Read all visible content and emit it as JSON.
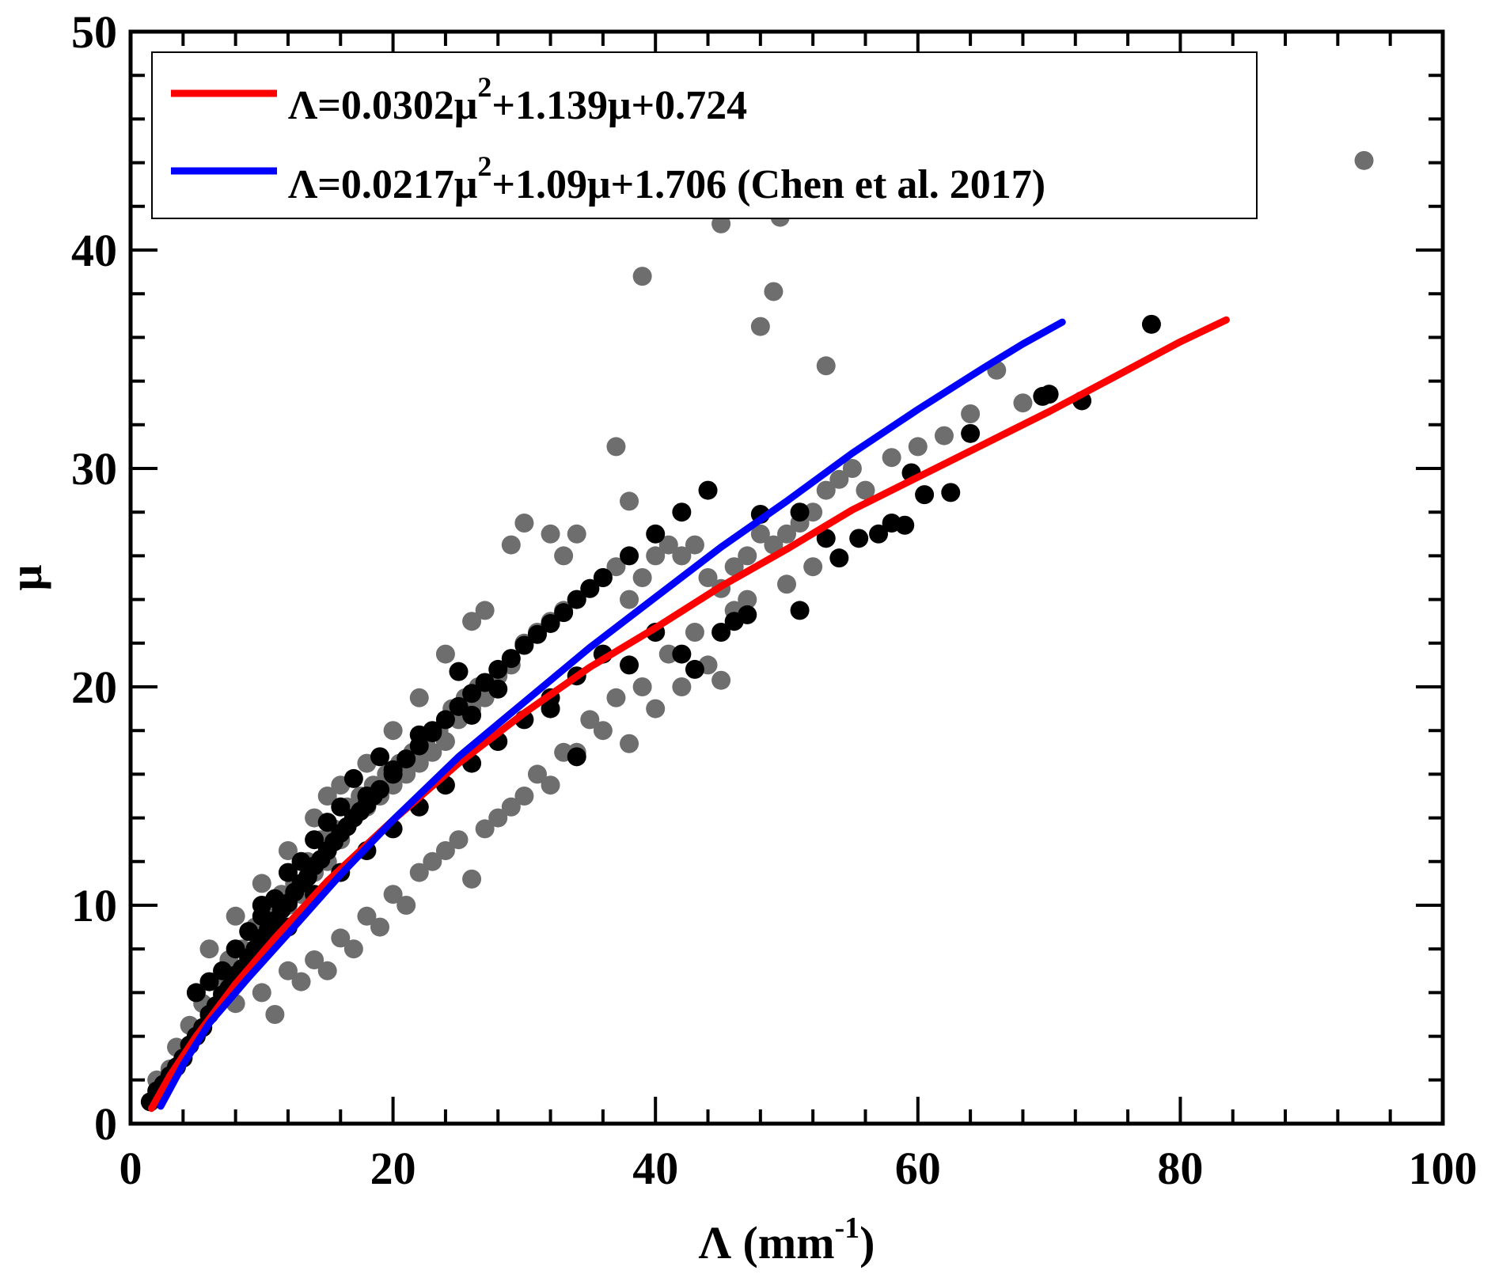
{
  "chart_data": {
    "type": "scatter",
    "xlabel": {
      "base": "Λ (mm",
      "sup": "-1",
      "tail": ")"
    },
    "ylabel": "μ",
    "xlim": [
      0,
      100
    ],
    "ylim": [
      0,
      50
    ],
    "x_ticks": [
      0,
      20,
      40,
      60,
      80,
      100
    ],
    "y_ticks": [
      0,
      10,
      20,
      30,
      40,
      50
    ],
    "x_tick_labels": [
      "0",
      "20",
      "40",
      "60",
      "80",
      "100"
    ],
    "y_tick_labels": [
      "0",
      "10",
      "20",
      "30",
      "40",
      "50"
    ],
    "minor_x_step": 4,
    "minor_y_step": 2,
    "legend": {
      "position": "top-left",
      "entries": [
        {
          "color": "#ff0000",
          "lead": "Λ=0.0302μ",
          "sup": "2",
          "tail": "+1.139μ+0.724"
        },
        {
          "color": "#0000ff",
          "lead": "Λ=0.0217μ",
          "sup": "2",
          "tail": "+1.09μ+1.706 (Chen et al. 2017)"
        }
      ]
    },
    "series": [
      {
        "name": "gray-points",
        "color": "#6e6e6e",
        "points": [
          [
            2,
            2
          ],
          [
            3,
            2.5
          ],
          [
            3.5,
            3.5
          ],
          [
            4,
            3
          ],
          [
            4.5,
            4.5
          ],
          [
            5,
            4
          ],
          [
            5.5,
            5.5
          ],
          [
            6,
            5
          ],
          [
            6.5,
            6.5
          ],
          [
            7,
            6
          ],
          [
            7.5,
            7.5
          ],
          [
            8,
            7
          ],
          [
            8.5,
            8
          ],
          [
            9,
            7.5
          ],
          [
            9.5,
            9
          ],
          [
            10,
            8.5
          ],
          [
            10.5,
            10
          ],
          [
            11,
            9.5
          ],
          [
            11.5,
            10.5
          ],
          [
            12,
            10
          ],
          [
            12.5,
            11
          ],
          [
            13,
            10.5
          ],
          [
            13.5,
            12
          ],
          [
            14,
            11.5
          ],
          [
            14.5,
            13
          ],
          [
            15,
            12
          ],
          [
            15.5,
            13.5
          ],
          [
            16,
            13
          ],
          [
            16.5,
            14.5
          ],
          [
            17,
            14
          ],
          [
            17.5,
            15
          ],
          [
            18,
            14.5
          ],
          [
            18.5,
            15.5
          ],
          [
            19,
            15
          ],
          [
            19.5,
            16
          ],
          [
            20,
            15.5
          ],
          [
            20.5,
            16.5
          ],
          [
            21,
            16
          ],
          [
            21.5,
            17
          ],
          [
            22,
            16.5
          ],
          [
            22.5,
            17.5
          ],
          [
            23,
            17
          ],
          [
            23.5,
            18
          ],
          [
            24,
            17.5
          ],
          [
            24.5,
            19
          ],
          [
            25,
            18.5
          ],
          [
            25.5,
            19.5
          ],
          [
            26,
            19
          ],
          [
            26.5,
            20
          ],
          [
            27,
            19.5
          ],
          [
            28,
            20.5
          ],
          [
            29,
            21
          ],
          [
            30,
            22
          ],
          [
            31,
            22.5
          ],
          [
            32,
            23
          ],
          [
            33,
            23.5
          ],
          [
            34,
            24
          ],
          [
            35,
            24.5
          ],
          [
            36,
            25
          ],
          [
            37,
            25.5
          ],
          [
            38,
            24
          ],
          [
            39,
            25
          ],
          [
            40,
            26
          ],
          [
            41,
            26.5
          ],
          [
            42,
            26
          ],
          [
            43,
            26.5
          ],
          [
            44,
            25
          ],
          [
            45,
            24.5
          ],
          [
            46,
            25.5
          ],
          [
            47,
            26
          ],
          [
            48,
            27
          ],
          [
            49,
            26.5
          ],
          [
            50,
            27
          ],
          [
            51,
            27.5
          ],
          [
            52,
            28
          ],
          [
            53,
            29
          ],
          [
            54,
            29.5
          ],
          [
            55,
            30
          ],
          [
            56,
            29
          ],
          [
            58,
            30.5
          ],
          [
            60,
            31
          ],
          [
            62,
            31.5
          ],
          [
            64,
            32.5
          ],
          [
            66,
            34.5
          ],
          [
            68,
            33
          ],
          [
            6,
            8
          ],
          [
            8,
            9.5
          ],
          [
            10,
            11
          ],
          [
            12,
            12.5
          ],
          [
            14,
            14
          ],
          [
            15,
            15
          ],
          [
            16,
            15.5
          ],
          [
            18,
            16.5
          ],
          [
            20,
            18
          ],
          [
            22,
            19.5
          ],
          [
            24,
            21.5
          ],
          [
            26,
            23
          ],
          [
            27,
            23.5
          ],
          [
            29,
            26.5
          ],
          [
            30,
            27.5
          ],
          [
            32,
            27
          ],
          [
            33,
            26
          ],
          [
            34,
            27
          ],
          [
            37,
            31
          ],
          [
            38,
            28.5
          ],
          [
            39,
            38.8
          ],
          [
            45,
            41.2
          ],
          [
            48,
            36.5
          ],
          [
            49,
            38.1
          ],
          [
            49.5,
            41.5
          ],
          [
            53,
            34.7
          ],
          [
            94,
            44.1
          ],
          [
            8,
            5.5
          ],
          [
            10,
            6
          ],
          [
            12,
            7
          ],
          [
            14,
            7.5
          ],
          [
            16,
            8.5
          ],
          [
            18,
            9.5
          ],
          [
            20,
            10.5
          ],
          [
            22,
            11.5
          ],
          [
            24,
            12.5
          ],
          [
            26,
            11.2
          ],
          [
            28,
            14
          ],
          [
            30,
            15
          ],
          [
            32,
            15.5
          ],
          [
            34,
            17
          ],
          [
            36,
            18
          ],
          [
            38,
            17.4
          ],
          [
            40,
            19
          ],
          [
            42,
            20
          ],
          [
            44,
            21
          ],
          [
            45,
            20.3
          ],
          [
            50,
            24.7
          ],
          [
            52,
            25.5
          ],
          [
            11,
            5
          ],
          [
            13,
            6.5
          ],
          [
            15,
            7
          ],
          [
            17,
            8
          ],
          [
            19,
            9
          ],
          [
            21,
            10
          ],
          [
            23,
            12
          ],
          [
            25,
            13
          ],
          [
            27,
            13.5
          ],
          [
            29,
            14.5
          ],
          [
            31,
            16
          ],
          [
            33,
            17
          ],
          [
            35,
            18.5
          ],
          [
            37,
            19.5
          ],
          [
            39,
            20
          ],
          [
            41,
            21.5
          ],
          [
            43,
            22.5
          ],
          [
            46,
            23.5
          ],
          [
            47,
            24
          ]
        ]
      },
      {
        "name": "black-points",
        "color": "#000000",
        "points": [
          [
            1.5,
            1
          ],
          [
            2,
            1.5
          ],
          [
            2.5,
            1.8
          ],
          [
            3,
            2.2
          ],
          [
            3.5,
            2.6
          ],
          [
            4,
            3
          ],
          [
            4.5,
            3.6
          ],
          [
            5,
            4
          ],
          [
            5.5,
            4.4
          ],
          [
            6,
            5
          ],
          [
            6.5,
            5.4
          ],
          [
            7,
            5.9
          ],
          [
            7.5,
            6.2
          ],
          [
            8,
            6.8
          ],
          [
            8.5,
            7.1
          ],
          [
            9,
            7.6
          ],
          [
            9.5,
            8
          ],
          [
            10,
            8.5
          ],
          [
            10.5,
            8.9
          ],
          [
            11,
            9.3
          ],
          [
            11.5,
            9.8
          ],
          [
            12,
            10.1
          ],
          [
            12.5,
            10.6
          ],
          [
            13,
            11
          ],
          [
            13.5,
            11.3
          ],
          [
            14,
            11.8
          ],
          [
            14.5,
            12.1
          ],
          [
            15,
            12.5
          ],
          [
            15.5,
            12.9
          ],
          [
            16,
            13.3
          ],
          [
            16.5,
            13.6
          ],
          [
            17,
            14
          ],
          [
            17.5,
            14.3
          ],
          [
            18,
            14.6
          ],
          [
            18.5,
            15
          ],
          [
            19,
            15.3
          ],
          [
            20,
            16
          ],
          [
            21,
            16.7
          ],
          [
            22,
            17.3
          ],
          [
            23,
            17.9
          ],
          [
            24,
            18.5
          ],
          [
            25,
            19.1
          ],
          [
            26,
            19.7
          ],
          [
            27,
            20.2
          ],
          [
            28,
            20.8
          ],
          [
            29,
            21.3
          ],
          [
            30,
            21.9
          ],
          [
            31,
            22.4
          ],
          [
            32,
            22.9
          ],
          [
            33,
            23.4
          ],
          [
            34,
            24
          ],
          [
            35,
            24.5
          ],
          [
            36,
            25
          ],
          [
            38,
            26
          ],
          [
            40,
            27
          ],
          [
            42,
            28
          ],
          [
            44,
            29
          ],
          [
            12,
            9
          ],
          [
            14,
            10.5
          ],
          [
            16,
            11.5
          ],
          [
            18,
            12.5
          ],
          [
            20,
            13.5
          ],
          [
            22,
            14.5
          ],
          [
            24,
            15.5
          ],
          [
            26,
            16.5
          ],
          [
            28,
            17.5
          ],
          [
            30,
            18.5
          ],
          [
            32,
            19.5
          ],
          [
            34,
            20.5
          ],
          [
            36,
            21.5
          ],
          [
            10,
            10
          ],
          [
            12,
            11.5
          ],
          [
            14,
            13
          ],
          [
            16,
            14.5
          ],
          [
            18,
            15
          ],
          [
            20,
            16.2
          ],
          [
            22,
            17.8
          ],
          [
            23,
            18
          ],
          [
            25,
            20.7
          ],
          [
            26,
            18.7
          ],
          [
            28,
            19.9
          ],
          [
            32,
            19
          ],
          [
            34,
            16.8
          ],
          [
            38,
            21
          ],
          [
            40,
            22.5
          ],
          [
            42,
            21.5
          ],
          [
            43,
            20.8
          ],
          [
            45,
            22.5
          ],
          [
            46,
            23
          ],
          [
            47,
            23.3
          ],
          [
            48,
            27.9
          ],
          [
            51,
            28
          ],
          [
            51,
            23.5
          ],
          [
            53,
            26.8
          ],
          [
            54,
            25.9
          ],
          [
            55.5,
            26.8
          ],
          [
            57,
            27
          ],
          [
            58,
            27.5
          ],
          [
            59,
            27.4
          ],
          [
            59.5,
            29.8
          ],
          [
            60.5,
            28.8
          ],
          [
            62.5,
            28.9
          ],
          [
            64,
            31.6
          ],
          [
            69.5,
            33.3
          ],
          [
            70,
            33.4
          ],
          [
            72.5,
            33.1
          ],
          [
            77.8,
            36.6
          ],
          [
            5,
            6
          ],
          [
            6,
            6.5
          ],
          [
            7,
            7
          ],
          [
            8,
            8
          ],
          [
            9,
            8.8
          ],
          [
            10,
            9.5
          ],
          [
            11,
            10.3
          ],
          [
            13,
            12
          ],
          [
            15,
            13.8
          ],
          [
            17,
            15.8
          ],
          [
            19,
            16.8
          ]
        ]
      }
    ],
    "curves": [
      {
        "name": "fit-red",
        "color": "#ff0000",
        "x": [
          1.6,
          3,
          5,
          8,
          11,
          15,
          20,
          25,
          30,
          35,
          40,
          45,
          50,
          55,
          60,
          65,
          70,
          75,
          80,
          83.5
        ],
        "y": [
          0.7,
          2.2,
          4,
          6.4,
          8.5,
          11.1,
          13.9,
          16.5,
          18.8,
          20.9,
          22.7,
          24.6,
          26.3,
          28.1,
          29.6,
          31.1,
          32.6,
          34.2,
          35.8,
          36.8
        ]
      },
      {
        "name": "fit-blue",
        "color": "#0000ff",
        "x": [
          2.3,
          4,
          6,
          9,
          12,
          16,
          20,
          25,
          30,
          35,
          40,
          45,
          50,
          55,
          60,
          65,
          68,
          71
        ],
        "y": [
          0.8,
          2.7,
          4.6,
          6.7,
          8.7,
          11.4,
          13.9,
          16.8,
          19.3,
          21.8,
          24.1,
          26.4,
          28.5,
          30.7,
          32.7,
          34.6,
          35.7,
          36.7
        ]
      }
    ]
  }
}
